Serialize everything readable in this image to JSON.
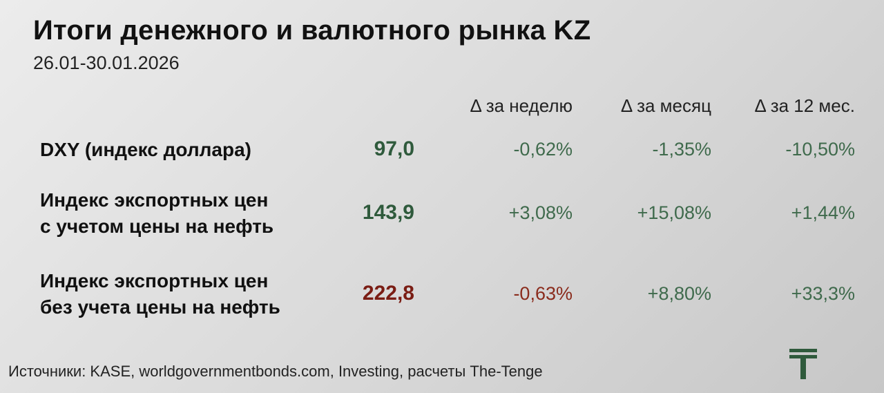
{
  "header": {
    "title": "Итоги денежного и валютного рынка KZ",
    "subtitle": "26.01-30.01.2026"
  },
  "table": {
    "columns": [
      "Δ за неделю",
      "Δ за месяц",
      "Δ за 12 мес."
    ],
    "rows": [
      {
        "label": [
          "DXY (индекс доллара)"
        ],
        "value": "97,0",
        "value_color": "#2f5a3c",
        "changes": [
          "-0,62%",
          "-1,35%",
          "-10,50%"
        ],
        "change_colors": [
          "#3f6a4c",
          "#3f6a4c",
          "#3f6a4c"
        ]
      },
      {
        "label": [
          "Индекс экспортных цен",
          "с учетом цены на нефть"
        ],
        "value": "143,9",
        "value_color": "#2f5a3c",
        "changes": [
          "+3,08%",
          "+15,08%",
          "+1,44%"
        ],
        "change_colors": [
          "#3f6a4c",
          "#3f6a4c",
          "#3f6a4c"
        ]
      },
      {
        "label": [
          "Индекс экспортных цен",
          "без учета цены на нефть"
        ],
        "value": "222,8",
        "value_color": "#7a1d14",
        "changes": [
          "-0,63%",
          "+8,80%",
          "+33,3%"
        ],
        "change_colors": [
          "#8a2b1c",
          "#3f6a4c",
          "#3f6a4c"
        ]
      }
    ]
  },
  "footer": {
    "source": "Источники: KASE, worldgovernmentbonds.com, Investing, расчеты The-Tenge"
  }
}
